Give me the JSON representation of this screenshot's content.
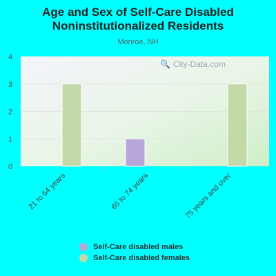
{
  "title_line1": "Age and Sex of Self-Care Disabled",
  "title_line2": "Noninstitutionalized Residents",
  "subtitle": "Monroe, NH",
  "watermark": "City-Data.com",
  "colors": {
    "page_bg": "#00ffff",
    "males": "#b9a6d9",
    "females": "#c3d9a8"
  },
  "chart_data": {
    "type": "bar",
    "title": "Age and Sex of Self-Care Disabled Noninstitutionalized Residents",
    "subtitle": "Monroe, NH",
    "categories": [
      "21 to 64 years",
      "65 to 74 years",
      "75 years and over"
    ],
    "series": [
      {
        "name": "Self-Care disabled males",
        "values": [
          0,
          1,
          0
        ],
        "color": "#b9a6d9"
      },
      {
        "name": "Self-Care disabled females",
        "values": [
          3,
          0,
          3
        ],
        "color": "#c3d9a8"
      }
    ],
    "ylim": [
      0,
      4
    ],
    "yticks": [
      "0",
      "1",
      "2",
      "3",
      "4"
    ],
    "grid": true,
    "legend_position": "bottom"
  }
}
